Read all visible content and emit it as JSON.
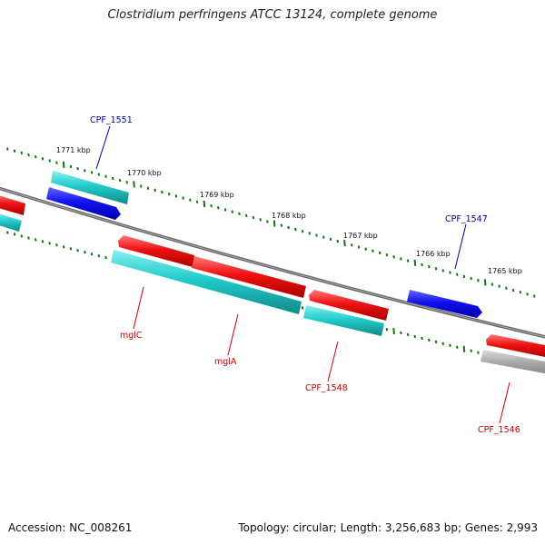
{
  "title": "Clostridium perfringens ATCC 13124, complete genome",
  "accession": "Accession: NC_008261",
  "summary": "Topology: circular; Length: 3,256,683 bp; Genes: 2,993",
  "ticks": [
    "1771 kbp",
    "1770 kbp",
    "1769 kbp",
    "1768 kbp",
    "1767 kbp",
    "1766 kbp",
    "1765 kbp"
  ],
  "labels_top": [
    "CPF_1551",
    "CPF_1547"
  ],
  "labels_bottom": [
    "mglC",
    "mglA",
    "CPF_1548",
    "CPF_1546"
  ],
  "colors": {
    "backbone": "#777777",
    "tick": "#117711",
    "cds_forward": "#1111ee",
    "cds_reverse": "#ee1111",
    "rna_band": "#22cccc",
    "other_band": "#aaaaaa",
    "label_top": "#000099",
    "label_bottom": "#cc0000"
  }
}
